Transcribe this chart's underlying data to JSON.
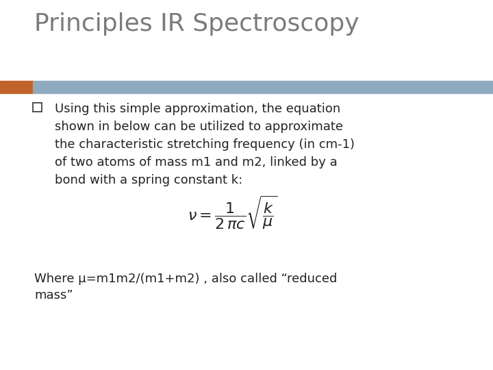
{
  "title": "Principles IR Spectroscopy",
  "title_color": "#7B7B7B",
  "title_fontsize": 26,
  "header_bar_color": "#8EAABF",
  "header_bar_left_color": "#C0622A",
  "bullet_lines": [
    "Using this simple approximation, the equation",
    "shown in below can be utilized to approximate",
    "the characteristic stretching frequency (in cm-1)",
    "of two atoms of mass m1 and m2, linked by a",
    "bond with a spring constant k:"
  ],
  "bullet_color": "#222222",
  "bullet_fontsize": 13,
  "equation_fontsize": 16,
  "footer_line1": "Where μ=m1m2/(m1+m2) , also called “reduced",
  "footer_line2": "mass”",
  "footer_fontsize": 13,
  "background_color": "#FFFFFF",
  "checkbox_color": "#333333"
}
